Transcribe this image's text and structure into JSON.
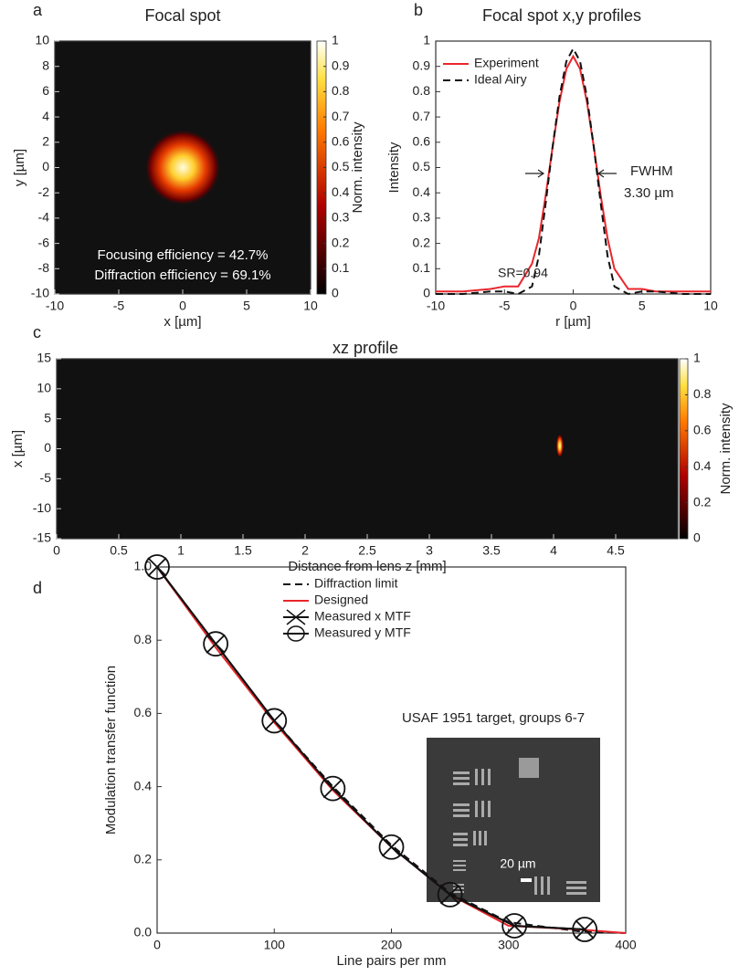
{
  "chart_data": [
    {
      "type": "heatmap",
      "panel_label": "a",
      "title": "Focal spot",
      "x_label": "x [µm]",
      "y_label": "y [µm]",
      "xlim": [
        -10,
        10
      ],
      "xticks": [
        -10,
        -5,
        0,
        5,
        10
      ],
      "ylim": [
        -10,
        10
      ],
      "yticks": [
        -10,
        -8,
        -6,
        -4,
        -2,
        0,
        2,
        4,
        6,
        8,
        10
      ],
      "peak": {
        "x": 0,
        "y": 0
      },
      "colorbar": {
        "label": "Norm. intensity",
        "lim": [
          0,
          1
        ],
        "ticks": [
          0,
          0.1,
          0.2,
          0.3,
          0.4,
          0.5,
          0.6,
          0.7,
          0.8,
          0.9,
          1
        ]
      },
      "annotations": [
        "Focusing efficiency = 42.7%",
        "Diffraction efficiency = 69.1%"
      ]
    },
    {
      "type": "line",
      "panel_label": "b",
      "title": "Focal spot x,y profiles",
      "x_label": "r [µm]",
      "y_label": "Intensity",
      "xlim": [
        -10,
        10
      ],
      "xticks": [
        -10,
        -5,
        0,
        5,
        10
      ],
      "ylim": [
        0,
        1
      ],
      "yticks": [
        0,
        0.1,
        0.2,
        0.3,
        0.4,
        0.5,
        0.6,
        0.7,
        0.8,
        0.9,
        1
      ],
      "x": [
        -10,
        -8,
        -6,
        -5,
        -4,
        -3,
        -2.5,
        -2,
        -1.5,
        -1,
        -0.5,
        0,
        0.5,
        1,
        1.5,
        2,
        2.5,
        3,
        4,
        5,
        6,
        8,
        10
      ],
      "series": [
        {
          "name": "Experiment",
          "color": "#e8262b",
          "values": [
            0.01,
            0.01,
            0.02,
            0.03,
            0.03,
            0.12,
            0.22,
            0.39,
            0.58,
            0.76,
            0.89,
            0.94,
            0.89,
            0.76,
            0.58,
            0.39,
            0.22,
            0.1,
            0.02,
            0.02,
            0.01,
            0.01,
            0.01
          ]
        },
        {
          "name": "Ideal Airy",
          "color": "#111111",
          "dash": true,
          "values": [
            0,
            0,
            0.01,
            0.01,
            0,
            0.03,
            0.15,
            0.36,
            0.58,
            0.78,
            0.92,
            0.97,
            0.92,
            0.78,
            0.58,
            0.36,
            0.15,
            0.03,
            0,
            0.01,
            0.01,
            0,
            0
          ]
        }
      ],
      "annotations": [
        "FWHM",
        "3.30 µm",
        "SR=0.94"
      ]
    },
    {
      "type": "heatmap",
      "panel_label": "c",
      "title": "xz profile",
      "x_label": "Distance from lens z [mm]",
      "y_label": "x [µm]",
      "xlim": [
        0,
        5
      ],
      "xticks": [
        0,
        0.5,
        1,
        1.5,
        2,
        2.5,
        3,
        3.5,
        4,
        4.5
      ],
      "ylim": [
        -15,
        15
      ],
      "yticks": [
        -15,
        -10,
        -5,
        0,
        5,
        10,
        15
      ],
      "peak": {
        "x": 4.05,
        "y": 0.5
      },
      "colorbar": {
        "label": "Norm. intensity",
        "lim": [
          0,
          1
        ],
        "ticks": [
          0,
          0.2,
          0.4,
          0.6,
          0.8,
          1
        ]
      }
    },
    {
      "type": "line",
      "panel_label": "d",
      "x_label": "Line pairs per mm",
      "y_label": "Modulation transfer function",
      "xlim": [
        0,
        400
      ],
      "xticks": [
        0,
        100,
        200,
        300,
        400
      ],
      "ylim": [
        0,
        1
      ],
      "yticks": [
        {
          "value": 0,
          "label": "0.0"
        },
        {
          "value": 0.2,
          "label": "0.2"
        },
        {
          "value": 0.4,
          "label": "0.4"
        },
        {
          "value": 0.6,
          "label": "0.6"
        },
        {
          "value": 0.8,
          "label": "0.8"
        },
        {
          "value": 1,
          "label": "1.0"
        }
      ],
      "series": [
        {
          "name": "Diffraction limit",
          "color": "#111111",
          "dash": true,
          "x": [
            0,
            50,
            100,
            150,
            200,
            250,
            300,
            360,
            400
          ],
          "values": [
            1,
            0.79,
            0.58,
            0.4,
            0.24,
            0.11,
            0.03,
            0.005,
            0
          ]
        },
        {
          "name": "Designed",
          "color": "#e8262b",
          "x": [
            0,
            50,
            100,
            150,
            200,
            250,
            300,
            360,
            400
          ],
          "values": [
            1,
            0.78,
            0.575,
            0.39,
            0.235,
            0.105,
            0.02,
            0.01,
            0
          ]
        },
        {
          "name": "Measured x MTF",
          "color": "#111111",
          "marker": "cross",
          "x": [
            0,
            50,
            100,
            150,
            200,
            250,
            305,
            365
          ],
          "values": [
            1,
            0.79,
            0.58,
            0.395,
            0.235,
            0.105,
            0.02,
            0.01
          ]
        },
        {
          "name": "Measured y MTF",
          "color": "#111111",
          "marker": "circle",
          "x": [
            0,
            50,
            100,
            150,
            200,
            250,
            305,
            365
          ],
          "values": [
            1,
            0.79,
            0.58,
            0.395,
            0.235,
            0.105,
            0.02,
            0.01
          ]
        }
      ],
      "annotations": [
        "USAF 1951 target, groups 6-7",
        "20 µm"
      ]
    }
  ]
}
